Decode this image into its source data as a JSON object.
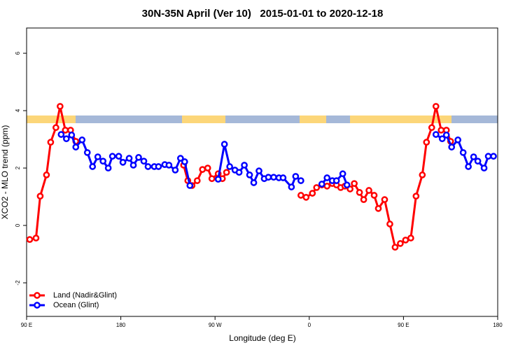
{
  "chart_data": {
    "type": "line",
    "title": "30N-35N April (Ver 10)   2015-01-01 to 2020-12-18",
    "xlabel": "Longitude (deg E)",
    "ylabel": "XCO2 - MLO trend (ppm)",
    "xlim": [
      90,
      540
    ],
    "ylim": [
      -3.17,
      6.88
    ],
    "xticks": [
      {
        "value": 90,
        "label": "90 E"
      },
      180,
      {
        "value": 270,
        "label": "90 W"
      },
      {
        "value": 360,
        "label": "0"
      },
      {
        "value": 450,
        "label": "90 E"
      },
      {
        "value": 540,
        "label": "180"
      }
    ],
    "yticks": [
      -2,
      0,
      2,
      4,
      6
    ],
    "legend": "bottom-left",
    "series": [
      {
        "name": "Land (Nadir&Glint)",
        "color": "#ff0000",
        "x": [
          93,
          99,
          103,
          109,
          113,
          118,
          122,
          127,
          132,
          137,
          200,
          240,
          244,
          248,
          253,
          258,
          263,
          267,
          273,
          277,
          281,
          330,
          352,
          357,
          363,
          367,
          372,
          377,
          382,
          386,
          390,
          394,
          399,
          403,
          408,
          412,
          417,
          422,
          426,
          432,
          437,
          442,
          447,
          452,
          457,
          462,
          468,
          472,
          477,
          481,
          486,
          491,
          495
        ],
        "values": [
          -0.49,
          -0.44,
          1.02,
          1.76,
          2.9,
          3.41,
          4.15,
          3.32,
          3.32,
          2.93,
          null,
          2.1,
          1.56,
          1.39,
          1.56,
          1.95,
          2.0,
          1.63,
          1.8,
          1.63,
          1.85,
          null,
          1.05,
          0.98,
          1.12,
          1.32,
          1.41,
          1.37,
          1.46,
          1.41,
          1.32,
          1.37,
          1.27,
          1.46,
          1.15,
          0.9,
          1.22,
          1.05,
          0.59,
          0.9,
          0.05,
          -0.76,
          -0.63,
          -0.51,
          -0.44,
          1.02,
          1.76,
          2.9,
          3.41,
          4.15,
          3.32,
          3.32,
          2.93
        ]
      },
      {
        "name": "Ocean (Glint)",
        "color": "#0000ff",
        "x": [
          123,
          128,
          133,
          137,
          143,
          148,
          153,
          158,
          163,
          168,
          172,
          178,
          182,
          188,
          192,
          197,
          202,
          206,
          212,
          216,
          222,
          226,
          232,
          237,
          241,
          246,
          260,
          273,
          279,
          284,
          289,
          293,
          298,
          303,
          307,
          312,
          317,
          321,
          326,
          331,
          335,
          343,
          347,
          352,
          360,
          372,
          377,
          382,
          386,
          392,
          396,
          440,
          481,
          487,
          491,
          496,
          502,
          507,
          512,
          517,
          521,
          527,
          531,
          536
        ],
        "values": [
          3.17,
          3.02,
          3.15,
          2.73,
          2.98,
          2.54,
          2.05,
          2.39,
          2.24,
          2.0,
          2.41,
          2.41,
          2.2,
          2.34,
          2.1,
          2.37,
          2.24,
          2.05,
          2.05,
          2.05,
          2.12,
          2.1,
          1.93,
          2.34,
          2.22,
          1.39,
          null,
          1.61,
          2.83,
          2.05,
          1.93,
          1.85,
          2.1,
          1.76,
          1.49,
          1.9,
          1.63,
          1.68,
          1.68,
          1.66,
          1.66,
          1.34,
          1.71,
          1.56,
          null,
          1.44,
          1.66,
          1.56,
          1.56,
          1.8,
          1.41,
          null,
          3.17,
          3.02,
          3.15,
          2.73,
          2.98,
          2.54,
          2.05,
          2.39,
          2.24,
          2.0,
          2.41,
          2.41
        ]
      }
    ]
  }
}
